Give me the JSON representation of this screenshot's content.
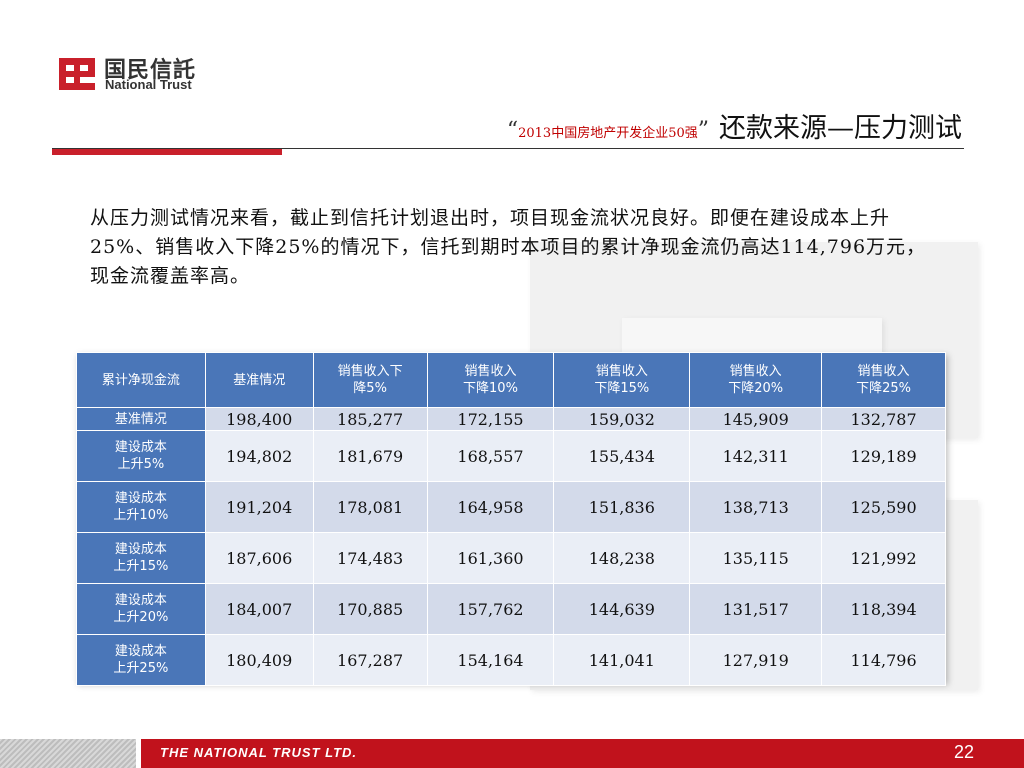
{
  "logo": {
    "cn": "国民信託",
    "en": "National Trust"
  },
  "title": {
    "open_quote": "“",
    "highlight": "2013中国房地产开发企业50强",
    "close_quote": "”",
    "main": "还款来源—压力测试"
  },
  "intro": "从压力测试情况来看，截止到信托计划退出时，项目现金流状况良好。即便在建设成本上升25%、销售收入下降25%的情况下，信托到期时本项目的累计净现金流仍高达114,796万元，现金流覆盖率高。",
  "table": {
    "headers": [
      "累计净现金流",
      "基准情况",
      "销售收入下降5%",
      "销售收入下降10%",
      "销售收入下降15%",
      "销售收入下降20%",
      "销售收入下降25%"
    ],
    "header_lines": [
      [
        "累计净现金流"
      ],
      [
        "基准情况"
      ],
      [
        "销售收入下",
        "降5%"
      ],
      [
        "销售收入",
        "下降10%"
      ],
      [
        "销售收入",
        "下降15%"
      ],
      [
        "销售收入",
        "下降20%"
      ],
      [
        "销售收入",
        "下降25%"
      ]
    ],
    "rows": [
      {
        "label_lines": [
          "基准情况"
        ],
        "values": [
          "198,400",
          "185,277",
          "172,155",
          "159,032",
          "145,909",
          "132,787"
        ]
      },
      {
        "label_lines": [
          "建设成本",
          "上升5%"
        ],
        "values": [
          "194,802",
          "181,679",
          "168,557",
          "155,434",
          "142,311",
          "129,189"
        ]
      },
      {
        "label_lines": [
          "建设成本",
          "上升10%"
        ],
        "values": [
          "191,204",
          "178,081",
          "164,958",
          "151,836",
          "138,713",
          "125,590"
        ]
      },
      {
        "label_lines": [
          "建设成本",
          "上升15%"
        ],
        "values": [
          "187,606",
          "174,483",
          "161,360",
          "148,238",
          "135,115",
          "121,992"
        ]
      },
      {
        "label_lines": [
          "建设成本",
          "上升20%"
        ],
        "values": [
          "184,007",
          "170,885",
          "157,762",
          "144,639",
          "131,517",
          "118,394"
        ]
      },
      {
        "label_lines": [
          "建设成本",
          "上升25%"
        ],
        "values": [
          "180,409",
          "167,287",
          "154,164",
          "141,041",
          "127,919",
          "114,796"
        ]
      }
    ]
  },
  "footer": {
    "company": "THE NATIONAL TRUST  LTD.",
    "page_number": "22"
  },
  "colors": {
    "brand_red": "#c9202b",
    "header_blue": "#4a76b8",
    "row_odd": "#d3daea",
    "row_even": "#eaeef6"
  }
}
